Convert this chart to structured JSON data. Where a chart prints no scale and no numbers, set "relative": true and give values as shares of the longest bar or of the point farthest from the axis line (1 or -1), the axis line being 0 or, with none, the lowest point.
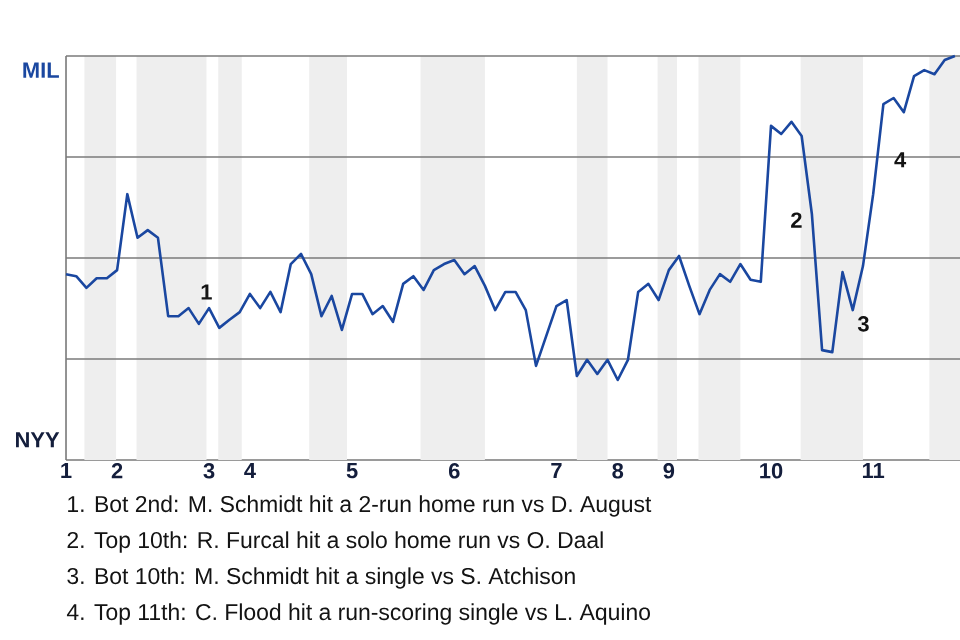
{
  "chart_data": {
    "type": "line",
    "relative": true,
    "marker": "none",
    "line_style": "solid",
    "categories": [
      "1",
      null,
      null,
      null,
      null,
      "2",
      null,
      null,
      null,
      null,
      null,
      null,
      null,
      null,
      "3",
      null,
      null,
      null,
      "4",
      null,
      null,
      null,
      null,
      null,
      null,
      null,
      null,
      null,
      "5",
      null,
      null,
      null,
      null,
      null,
      null,
      null,
      null,
      null,
      "6",
      null,
      null,
      null,
      null,
      null,
      null,
      null,
      null,
      null,
      "7",
      null,
      null,
      null,
      null,
      null,
      "8",
      null,
      null,
      null,
      null,
      "9",
      null,
      null,
      null,
      null,
      null,
      null,
      null,
      null,
      null,
      "10",
      null,
      null,
      null,
      null,
      null,
      null,
      null,
      null,
      null,
      "11",
      null,
      null,
      null,
      null,
      null,
      null,
      null,
      null
    ],
    "series": [
      {
        "color": "#1a47a0",
        "values": [
          0.46,
          0.455,
          0.426,
          0.45,
          0.45,
          0.47,
          0.658,
          0.55,
          0.569,
          0.55,
          0.356,
          0.356,
          0.376,
          0.337,
          0.376,
          0.327,
          0.347,
          0.366,
          0.411,
          0.376,
          0.416,
          0.366,
          0.485,
          0.51,
          0.46,
          0.356,
          0.406,
          0.322,
          0.411,
          0.411,
          0.361,
          0.381,
          0.342,
          0.436,
          0.455,
          0.421,
          0.47,
          0.485,
          0.495,
          0.46,
          0.48,
          0.431,
          0.371,
          0.416,
          0.416,
          0.371,
          0.233,
          0.307,
          0.381,
          0.396,
          0.208,
          0.248,
          0.213,
          0.248,
          0.198,
          0.248,
          0.416,
          0.436,
          0.396,
          0.47,
          0.505,
          0.431,
          0.361,
          0.421,
          0.46,
          0.441,
          0.485,
          0.446,
          0.441,
          0.827,
          0.807,
          0.837,
          0.802,
          0.609,
          0.272,
          0.267,
          0.465,
          0.371,
          0.48,
          0.658,
          0.881,
          0.896,
          0.861,
          0.95,
          0.965,
          0.955,
          0.99,
          1.0
        ]
      }
    ],
    "ref_lines": [
      {
        "axis": "y",
        "value": 0.25,
        "color": "#7a7a7a"
      },
      {
        "axis": "y",
        "value": 0.5,
        "color": "#7a7a7a"
      },
      {
        "axis": "y",
        "value": 0.75,
        "color": "#7a7a7a"
      },
      {
        "axis": "y",
        "value": 1.0,
        "color": "#7a7a7a"
      }
    ],
    "annotations": [
      "1",
      "2",
      "3",
      "4",
      "MIL",
      "NYY",
      "1. Bot 2nd: M. Schmidt hit a 2-run home run vs D. August",
      "2. Top 10th: R. Furcal hit a solo home run vs O. Daal",
      "3. Bot 10th: M. Schmidt hit a single vs S. Atchison",
      "4. Top 11th: C. Flood hit a run-scoring single vs L. Aquino"
    ]
  }
}
